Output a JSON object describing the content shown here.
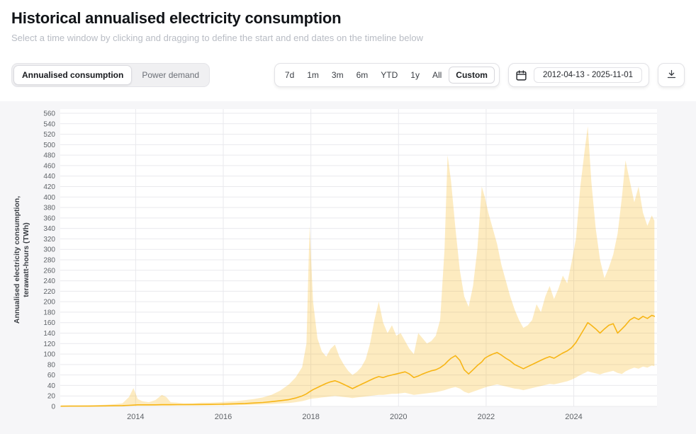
{
  "header": {
    "title": "Historical annualised electricity consumption",
    "subtitle": "Select a time window by clicking and dragging to define the start and end dates on the timeline below"
  },
  "controls": {
    "view_toggle": [
      {
        "label": "Annualised consumption",
        "selected": true
      },
      {
        "label": "Power demand",
        "selected": false
      }
    ],
    "range_buttons": [
      {
        "label": "7d",
        "selected": false
      },
      {
        "label": "1m",
        "selected": false
      },
      {
        "label": "3m",
        "selected": false
      },
      {
        "label": "6m",
        "selected": false
      },
      {
        "label": "YTD",
        "selected": false
      },
      {
        "label": "1y",
        "selected": false
      },
      {
        "label": "All",
        "selected": false
      },
      {
        "label": "Custom",
        "selected": true
      }
    ],
    "date_range": "2012-04-13 - 2025-11-01",
    "icons": {
      "calendar": "calendar-icon",
      "download": "download-icon"
    }
  },
  "chart_data": {
    "type": "area",
    "title": "Historical annualised electricity consumption",
    "ylabel_lines": [
      "Annualised electricity consumption,",
      "terawatt-hours (TWh)"
    ],
    "xlabel": "",
    "ylim": [
      0,
      560
    ],
    "ytick_step": 20,
    "xlim": [
      2012.28,
      2025.9
    ],
    "xticks": [
      2014,
      2016,
      2018,
      2020,
      2022,
      2024
    ],
    "grid": true,
    "legend": "none",
    "colors": {
      "line": "#f7b515",
      "band": "#f7b515",
      "band_opacity": 0.27,
      "grid": "#e9e9ed",
      "plot_bg": "#ffffff",
      "section_bg": "#f6f6f8",
      "axis_text": "#5f6368",
      "ylabel_text": "#3a3e44"
    },
    "x": [
      2012.3,
      2012.5,
      2012.7,
      2012.9,
      2013.1,
      2013.3,
      2013.5,
      2013.7,
      2013.85,
      2013.95,
      2014.05,
      2014.15,
      2014.3,
      2014.45,
      2014.6,
      2014.7,
      2014.8,
      2014.95,
      2015.1,
      2015.3,
      2015.5,
      2015.7,
      2015.9,
      2016.1,
      2016.3,
      2016.5,
      2016.7,
      2016.9,
      2017.1,
      2017.3,
      2017.5,
      2017.65,
      2017.8,
      2017.9,
      2017.97,
      2018.05,
      2018.15,
      2018.25,
      2018.35,
      2018.45,
      2018.55,
      2018.65,
      2018.75,
      2018.85,
      2018.95,
      2019.05,
      2019.15,
      2019.25,
      2019.35,
      2019.45,
      2019.55,
      2019.65,
      2019.75,
      2019.85,
      2019.95,
      2020.05,
      2020.15,
      2020.25,
      2020.35,
      2020.45,
      2020.55,
      2020.65,
      2020.75,
      2020.85,
      2020.95,
      2021.05,
      2021.12,
      2021.2,
      2021.3,
      2021.4,
      2021.5,
      2021.6,
      2021.7,
      2021.8,
      2021.9,
      2021.97,
      2022.05,
      2022.15,
      2022.25,
      2022.35,
      2022.45,
      2022.55,
      2022.65,
      2022.75,
      2022.85,
      2022.95,
      2023.05,
      2023.15,
      2023.25,
      2023.35,
      2023.45,
      2023.55,
      2023.65,
      2023.75,
      2023.85,
      2023.95,
      2024.05,
      2024.15,
      2024.25,
      2024.32,
      2024.4,
      2024.5,
      2024.6,
      2024.7,
      2024.8,
      2024.9,
      2025.0,
      2025.1,
      2025.18,
      2025.28,
      2025.38,
      2025.48,
      2025.58,
      2025.68,
      2025.78,
      2025.84
    ],
    "series": [
      {
        "name": "upper_bound",
        "values": [
          1,
          1.2,
          1.5,
          2,
          2.5,
          3,
          4,
          6,
          18,
          35,
          14,
          10,
          8,
          12,
          22,
          18,
          8,
          7,
          6,
          6,
          7,
          7,
          8,
          9,
          10,
          12,
          14,
          17,
          22,
          30,
          42,
          55,
          75,
          120,
          345,
          200,
          130,
          105,
          95,
          110,
          118,
          95,
          80,
          68,
          60,
          66,
          75,
          90,
          120,
          165,
          200,
          160,
          140,
          155,
          135,
          140,
          125,
          110,
          100,
          140,
          130,
          120,
          125,
          135,
          165,
          300,
          480,
          430,
          340,
          260,
          210,
          190,
          230,
          300,
          420,
          400,
          370,
          340,
          310,
          270,
          240,
          210,
          185,
          165,
          150,
          155,
          165,
          195,
          180,
          210,
          230,
          205,
          225,
          250,
          235,
          275,
          320,
          420,
          490,
          535,
          430,
          340,
          280,
          245,
          265,
          290,
          330,
          400,
          470,
          430,
          390,
          420,
          370,
          345,
          365,
          355
        ]
      },
      {
        "name": "estimate",
        "values": [
          0.4,
          0.5,
          0.5,
          0.6,
          0.8,
          1.0,
          1.2,
          1.5,
          2.0,
          2.5,
          3.0,
          3.0,
          3.0,
          3.0,
          3.2,
          3.3,
          3.3,
          3.4,
          3.4,
          3.5,
          3.6,
          3.8,
          4.0,
          4.5,
          5.0,
          5.5,
          6.5,
          7.5,
          9,
          11,
          13,
          16,
          20,
          24,
          28,
          32,
          36,
          40,
          44,
          47,
          49,
          46,
          42,
          38,
          34,
          38,
          42,
          46,
          50,
          54,
          57,
          55,
          58,
          60,
          62,
          64,
          66,
          62,
          55,
          58,
          62,
          65,
          68,
          70,
          74,
          80,
          86,
          92,
          97,
          88,
          70,
          62,
          70,
          78,
          85,
          92,
          96,
          100,
          103,
          98,
          92,
          87,
          80,
          76,
          72,
          76,
          80,
          84,
          88,
          92,
          95,
          92,
          97,
          102,
          106,
          112,
          122,
          136,
          150,
          160,
          155,
          148,
          140,
          148,
          155,
          158,
          140,
          148,
          155,
          165,
          170,
          166,
          172,
          168,
          174,
          172
        ]
      },
      {
        "name": "lower_bound",
        "values": [
          0.1,
          0.1,
          0.2,
          0.2,
          0.3,
          0.4,
          0.5,
          0.6,
          0.8,
          1.0,
          1.2,
          1.2,
          1.2,
          1.3,
          1.3,
          1.4,
          1.4,
          1.5,
          1.5,
          1.6,
          1.7,
          1.8,
          2.0,
          2.2,
          2.5,
          2.8,
          3.2,
          3.8,
          4.5,
          5.5,
          6.5,
          8,
          10,
          12,
          14,
          15,
          16,
          17,
          18,
          19,
          20,
          19,
          18,
          17,
          16,
          17,
          18,
          19,
          20,
          21,
          22,
          22,
          23,
          24,
          24,
          25,
          26,
          24,
          22,
          23,
          24,
          25,
          26,
          27,
          29,
          31,
          33,
          35,
          37,
          34,
          28,
          25,
          28,
          31,
          34,
          36,
          38,
          40,
          42,
          40,
          38,
          36,
          34,
          33,
          31,
          33,
          35,
          37,
          39,
          41,
          43,
          42,
          44,
          46,
          48,
          51,
          55,
          60,
          64,
          67,
          65,
          63,
          61,
          64,
          66,
          68,
          64,
          62,
          67,
          71,
          74,
          72,
          76,
          74,
          78,
          77
        ]
      }
    ]
  }
}
